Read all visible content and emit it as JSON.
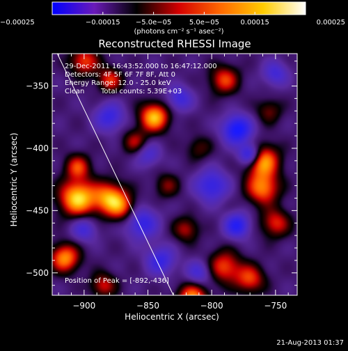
{
  "chart_data": {
    "type": "heatmap",
    "title": "Reconstructed RHESSI Image",
    "xlabel": "Heliocentric X (arcsec)",
    "ylabel": "Heliocentric Y (arcsec)",
    "xlim": [
      -925,
      -733
    ],
    "ylim": [
      -518,
      -324
    ],
    "x_ticks": [
      -900,
      -850,
      -800,
      -750
    ],
    "x_tick_labels": [
      "−900",
      "−850",
      "−800",
      "−750"
    ],
    "y_ticks": [
      -350,
      -400,
      -450,
      -500
    ],
    "y_tick_labels": [
      "−350",
      "−400",
      "−450",
      "−500"
    ],
    "colorbar": {
      "range": [
        -0.00025,
        0.00025
      ],
      "tick_values": [
        -0.00025,
        -0.00015,
        -5e-05,
        5e-05,
        0.00015,
        0.00025
      ],
      "tick_labels": [
        "−0.00025",
        "−0.00015",
        "−5.0e−05",
        "5.0e−05",
        "0.00015",
        "0.00025"
      ],
      "unit_label": "(photons cm⁻² s⁻¹ asec⁻²)",
      "colors": [
        "#0000ff",
        "#6a1ab8",
        "#000000",
        "#d40000",
        "#ff6a00",
        "#ffcc00",
        "#ffffff"
      ]
    },
    "annotations": {
      "time_range": "29-Dec-2011 16:43:52.000 to 16:47:12.000",
      "detectors": "Detectors: 4F 5F 6F 7F 8F, Att 0",
      "energy_range": "Energy Range: 12.0 - 25.0 keV",
      "algorithm": "Clean",
      "total_counts": "Total counts: 5.39E+03",
      "peak": "Position of Peak = [-892,-436]"
    },
    "limb_line": {
      "x": [
        -921,
        -830
      ],
      "y": [
        -324,
        -518
      ]
    },
    "sources": [
      {
        "x": -905,
        "y": -440,
        "amp": 1.0,
        "sigma": 10
      },
      {
        "x": -880,
        "y": -440,
        "amp": 0.8,
        "sigma": 9
      },
      {
        "x": -870,
        "y": -448,
        "amp": 0.5,
        "sigma": 8
      },
      {
        "x": -845,
        "y": -375,
        "amp": 0.92,
        "sigma": 8
      },
      {
        "x": -860,
        "y": -395,
        "amp": 0.45,
        "sigma": 7
      },
      {
        "x": -760,
        "y": -410,
        "amp": 0.85,
        "sigma": 9
      },
      {
        "x": -760,
        "y": -432,
        "amp": 0.75,
        "sigma": 9
      },
      {
        "x": -750,
        "y": -460,
        "amp": 0.55,
        "sigma": 8
      },
      {
        "x": -790,
        "y": -495,
        "amp": 0.62,
        "sigma": 9
      },
      {
        "x": -770,
        "y": -505,
        "amp": 0.6,
        "sigma": 8
      },
      {
        "x": -815,
        "y": -520,
        "amp": 0.8,
        "sigma": 8
      },
      {
        "x": -915,
        "y": -488,
        "amp": 0.8,
        "sigma": 8
      },
      {
        "x": -905,
        "y": -415,
        "amp": 0.58,
        "sigma": 7
      },
      {
        "x": -900,
        "y": -330,
        "amp": 0.6,
        "sigma": 8
      },
      {
        "x": -880,
        "y": -345,
        "amp": 0.55,
        "sigma": 7
      },
      {
        "x": -790,
        "y": -345,
        "amp": 0.6,
        "sigma": 8
      },
      {
        "x": -820,
        "y": -465,
        "amp": 0.45,
        "sigma": 7
      },
      {
        "x": -885,
        "y": -510,
        "amp": 0.5,
        "sigma": 7
      },
      {
        "x": -835,
        "y": -430,
        "amp": 0.35,
        "sigma": 7
      },
      {
        "x": -755,
        "y": -370,
        "amp": 0.35,
        "sigma": 7
      },
      {
        "x": -810,
        "y": -400,
        "amp": 0.3,
        "sigma": 7
      },
      {
        "x": -780,
        "y": -385,
        "amp": -0.85,
        "sigma": 8
      },
      {
        "x": -770,
        "y": -405,
        "amp": -0.8,
        "sigma": 6
      },
      {
        "x": -780,
        "y": -462,
        "amp": -0.7,
        "sigma": 7
      },
      {
        "x": -800,
        "y": -430,
        "amp": -0.6,
        "sigma": 9
      },
      {
        "x": -880,
        "y": -375,
        "amp": -0.55,
        "sigma": 8
      },
      {
        "x": -855,
        "y": -460,
        "amp": -0.6,
        "sigma": 9
      },
      {
        "x": -840,
        "y": -490,
        "amp": -0.55,
        "sigma": 8
      },
      {
        "x": -825,
        "y": -360,
        "amp": -0.5,
        "sigma": 7
      },
      {
        "x": -900,
        "y": -465,
        "amp": -0.45,
        "sigma": 7
      },
      {
        "x": -750,
        "y": -340,
        "amp": -0.45,
        "sigma": 7
      },
      {
        "x": -850,
        "y": -405,
        "amp": -0.4,
        "sigma": 7
      },
      {
        "x": -810,
        "y": -500,
        "amp": -0.45,
        "sigma": 7
      }
    ]
  },
  "footer": {
    "timestamp": "21-Aug-2013 01:37"
  }
}
